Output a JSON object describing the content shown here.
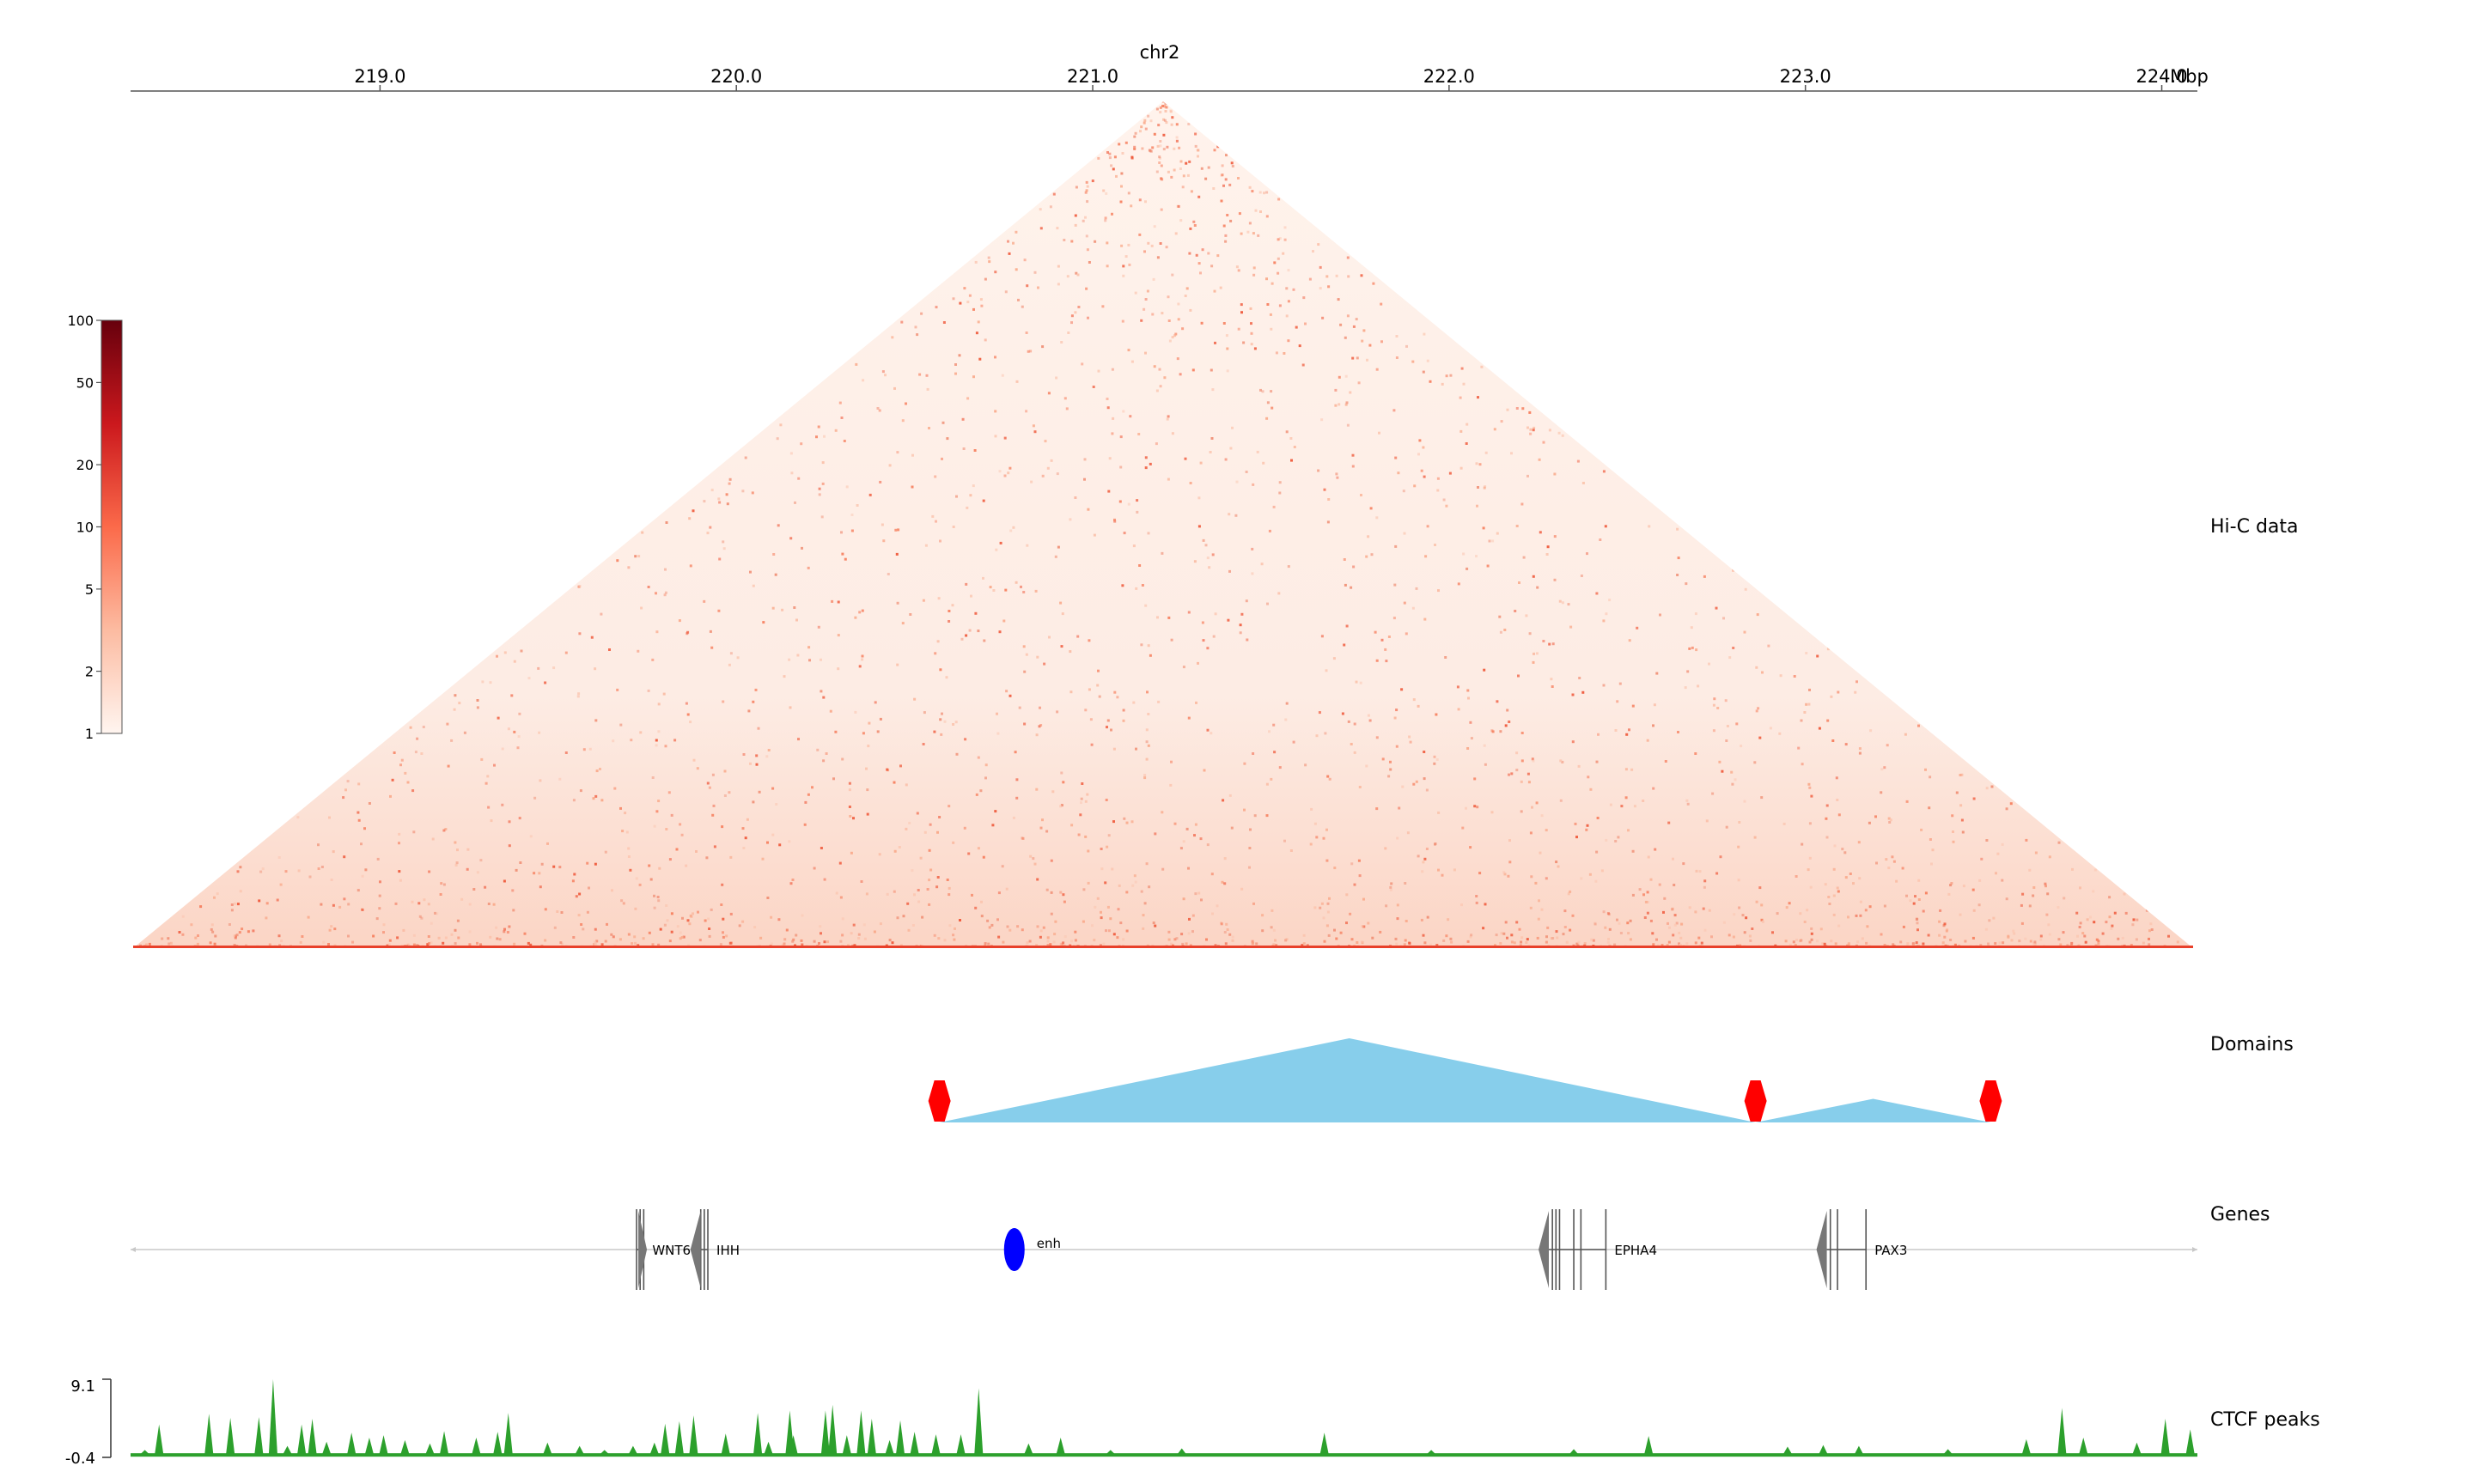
{
  "chart_data": [
    {
      "type": "heatmap",
      "track_label": "Hi-C data",
      "axis": {
        "chromosome": "chr2",
        "unit": "Mbp",
        "xlim": [
          218.3,
          224.1
        ],
        "ticks": [
          219.0,
          220.0,
          221.0,
          222.0,
          223.0,
          224.0
        ],
        "tick_labels": [
          "219.0",
          "220.0",
          "221.0",
          "222.0",
          "223.0",
          "224.0"
        ]
      },
      "colorbar": {
        "scale": "log",
        "range": [
          1,
          100
        ],
        "ticks": [
          1,
          2,
          5,
          10,
          20,
          50,
          100
        ],
        "tick_labels": [
          "1",
          "2",
          "5",
          "10",
          "20",
          "50",
          "100"
        ],
        "colors": [
          "#fff5f0",
          "#fcbba1",
          "#fb6a4a",
          "#cb181d",
          "#67000d"
        ]
      },
      "matrix_color": "#fdeee6",
      "diagonal_color": "#e8402a"
    },
    {
      "type": "area",
      "track_label": "Domains",
      "domains": [
        {
          "start": 220.57,
          "end": 222.86,
          "peak_x": 221.72,
          "rel_height": 1.0
        },
        {
          "start": 222.86,
          "end": 223.52,
          "peak_x": 223.19,
          "rel_height": 0.28
        }
      ],
      "boundaries": [
        220.57,
        222.86,
        223.52
      ],
      "domain_color": "#87ceeb",
      "boundary_color": "#ff0000"
    },
    {
      "type": "table",
      "track_label": "Genes",
      "genes": [
        {
          "name": "WNT6",
          "start": 219.72,
          "end": 219.74,
          "strand": "+",
          "exons": [
            219.72,
            219.73,
            219.74
          ]
        },
        {
          "name": "IHH",
          "start": 219.9,
          "end": 219.92,
          "strand": "-",
          "exons": [
            219.9,
            219.91,
            219.92
          ]
        },
        {
          "name": "EPHA4",
          "start": 222.28,
          "end": 222.44,
          "strand": "-",
          "exons": [
            222.29,
            222.3,
            222.31,
            222.35,
            222.37,
            222.44
          ]
        },
        {
          "name": "PAX3",
          "start": 223.06,
          "end": 223.17,
          "strand": "-",
          "exons": [
            223.07,
            223.09,
            223.17
          ]
        }
      ],
      "enhancers": [
        {
          "name": "enh",
          "pos": 220.78
        }
      ],
      "gene_color": "#777777",
      "enhancer_color": "#0000ff"
    },
    {
      "type": "area",
      "track_label": "CTCF peaks",
      "ylim": [
        -0.4,
        9.1
      ],
      "ytick_labels": [
        "9.1",
        "-0.4"
      ],
      "color": "#2ca02c",
      "peaks": [
        {
          "x": 218.34,
          "y": 0.5
        },
        {
          "x": 218.38,
          "y": 3.6
        },
        {
          "x": 218.52,
          "y": 4.9
        },
        {
          "x": 218.58,
          "y": 4.4
        },
        {
          "x": 218.66,
          "y": 4.5
        },
        {
          "x": 218.7,
          "y": 9.1
        },
        {
          "x": 218.74,
          "y": 1.0
        },
        {
          "x": 218.78,
          "y": 3.6
        },
        {
          "x": 218.81,
          "y": 4.3
        },
        {
          "x": 218.85,
          "y": 1.5
        },
        {
          "x": 218.92,
          "y": 2.6
        },
        {
          "x": 218.97,
          "y": 2.0
        },
        {
          "x": 219.01,
          "y": 2.3
        },
        {
          "x": 219.07,
          "y": 1.7
        },
        {
          "x": 219.14,
          "y": 1.3
        },
        {
          "x": 219.18,
          "y": 2.8
        },
        {
          "x": 219.27,
          "y": 2.0
        },
        {
          "x": 219.33,
          "y": 2.7
        },
        {
          "x": 219.36,
          "y": 5.0
        },
        {
          "x": 219.47,
          "y": 1.4
        },
        {
          "x": 219.56,
          "y": 1.0
        },
        {
          "x": 219.63,
          "y": 0.5
        },
        {
          "x": 219.71,
          "y": 1.0
        },
        {
          "x": 219.77,
          "y": 1.4
        },
        {
          "x": 219.8,
          "y": 3.7
        },
        {
          "x": 219.84,
          "y": 4.0
        },
        {
          "x": 219.88,
          "y": 4.7
        },
        {
          "x": 219.97,
          "y": 2.5
        },
        {
          "x": 220.06,
          "y": 5.0
        },
        {
          "x": 220.09,
          "y": 1.5
        },
        {
          "x": 220.15,
          "y": 5.3
        },
        {
          "x": 220.16,
          "y": 2.3
        },
        {
          "x": 220.25,
          "y": 5.3
        },
        {
          "x": 220.27,
          "y": 6.0
        },
        {
          "x": 220.31,
          "y": 2.3
        },
        {
          "x": 220.35,
          "y": 5.3
        },
        {
          "x": 220.38,
          "y": 4.3
        },
        {
          "x": 220.43,
          "y": 1.7
        },
        {
          "x": 220.46,
          "y": 4.1
        },
        {
          "x": 220.5,
          "y": 2.7
        },
        {
          "x": 220.56,
          "y": 2.4
        },
        {
          "x": 220.63,
          "y": 2.4
        },
        {
          "x": 220.68,
          "y": 8.0
        },
        {
          "x": 220.82,
          "y": 1.3
        },
        {
          "x": 220.91,
          "y": 2.0
        },
        {
          "x": 221.05,
          "y": 0.5
        },
        {
          "x": 221.25,
          "y": 0.7
        },
        {
          "x": 221.65,
          "y": 2.6
        },
        {
          "x": 221.95,
          "y": 0.5
        },
        {
          "x": 222.35,
          "y": 0.6
        },
        {
          "x": 222.56,
          "y": 2.2
        },
        {
          "x": 222.95,
          "y": 0.9
        },
        {
          "x": 223.05,
          "y": 1.1
        },
        {
          "x": 223.15,
          "y": 1.0
        },
        {
          "x": 223.4,
          "y": 0.6
        },
        {
          "x": 223.62,
          "y": 1.8
        },
        {
          "x": 223.72,
          "y": 5.6
        },
        {
          "x": 223.78,
          "y": 2.0
        },
        {
          "x": 223.93,
          "y": 1.4
        },
        {
          "x": 224.01,
          "y": 4.3
        },
        {
          "x": 224.08,
          "y": 3.0
        }
      ]
    }
  ]
}
